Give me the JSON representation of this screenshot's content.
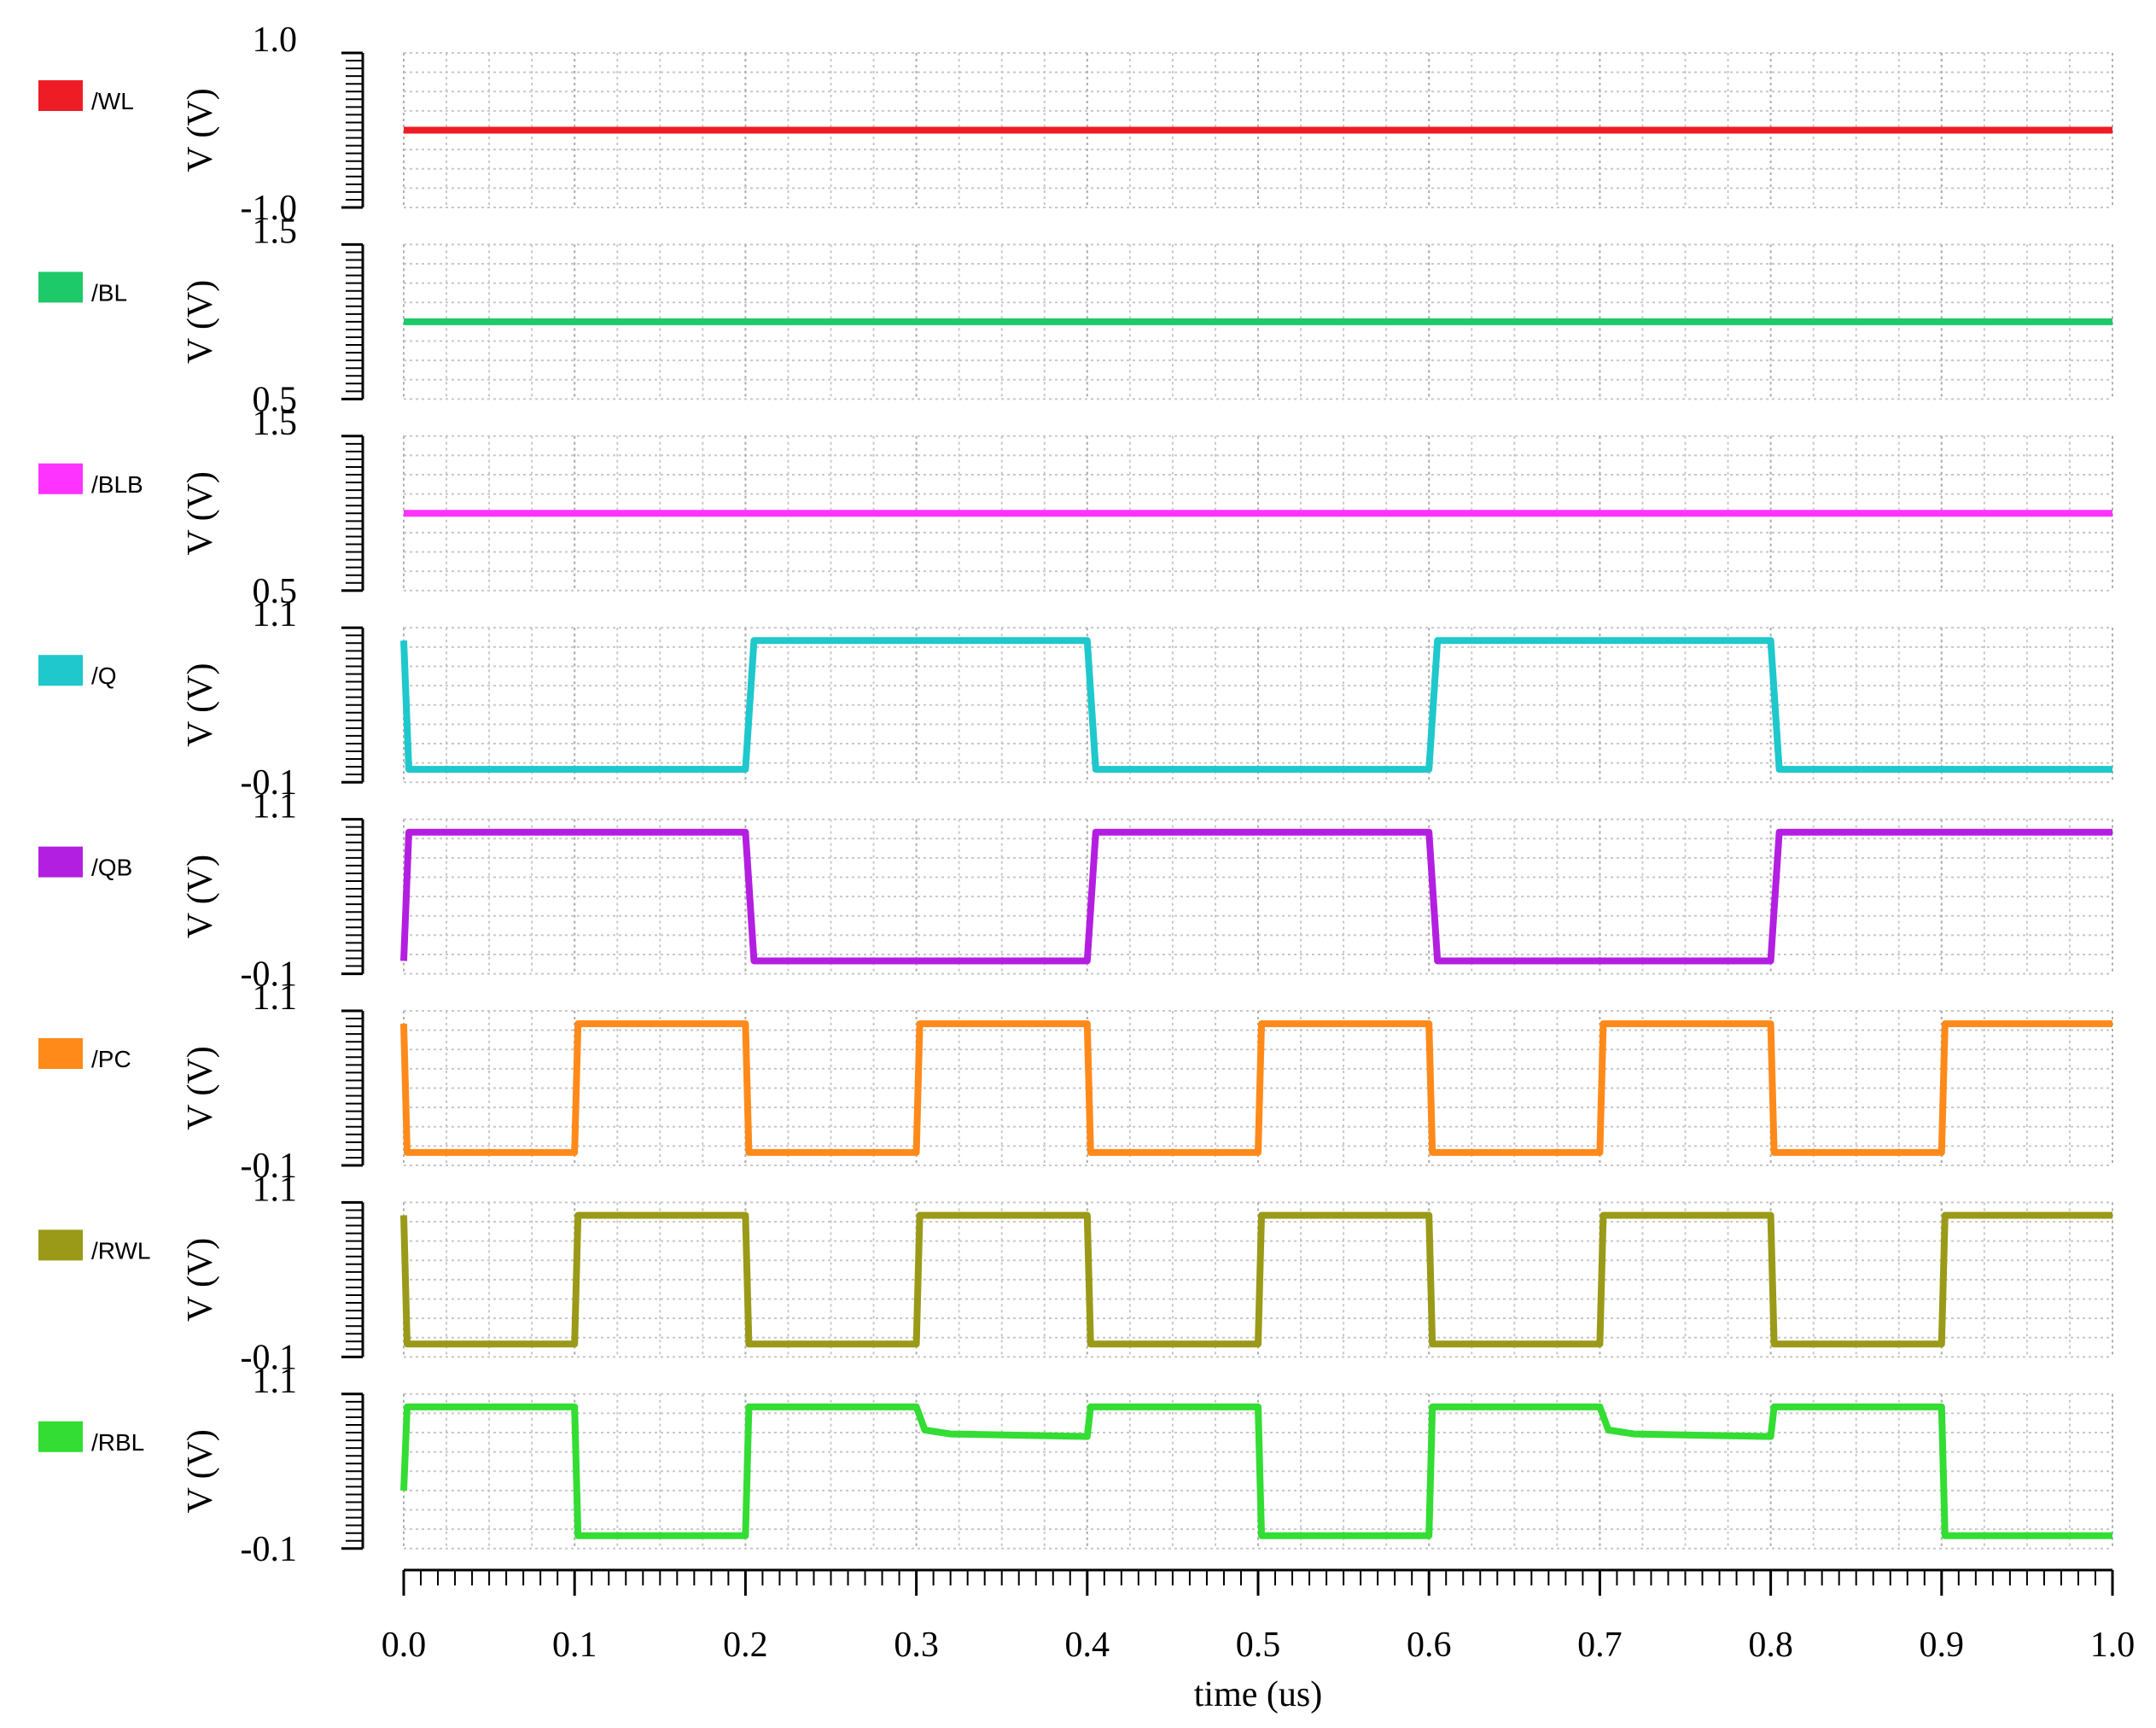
{
  "chart_data": [
    {
      "type": "line",
      "ylabel": "V (V)",
      "xlim": [
        0,
        1
      ],
      "ylim": [
        -1,
        1
      ],
      "yticks": [
        {
          "value": -1,
          "label": "-1.0"
        },
        {
          "value": 1,
          "label": "1.0"
        }
      ],
      "grid": true,
      "x": [
        0,
        1
      ],
      "series": [
        {
          "name": "/WL",
          "color": "#ee1c25",
          "values": [
            0,
            0
          ]
        }
      ]
    },
    {
      "type": "line",
      "ylabel": "V (V)",
      "xlim": [
        0,
        1
      ],
      "ylim": [
        0.5,
        1.5
      ],
      "yticks": [
        0.5,
        1.5
      ],
      "grid": true,
      "x": [
        0,
        1
      ],
      "series": [
        {
          "name": "/BL",
          "color": "#1ec96a",
          "values": [
            1,
            1
          ]
        }
      ]
    },
    {
      "type": "line",
      "ylabel": "V (V)",
      "xlim": [
        0,
        1
      ],
      "ylim": [
        0.5,
        1.5
      ],
      "yticks": [
        0.5,
        1.5
      ],
      "grid": true,
      "x": [
        0,
        1
      ],
      "series": [
        {
          "name": "/BLB",
          "color": "#ff33ff",
          "values": [
            1,
            1
          ]
        }
      ]
    },
    {
      "type": "line",
      "ylabel": "V (V)",
      "xlim": [
        0,
        1
      ],
      "ylim": [
        -0.1,
        1.1
      ],
      "yticks": [
        -0.1,
        1.1
      ],
      "grid": true,
      "x": [
        0,
        0.003,
        0.2,
        0.205,
        0.4,
        0.405,
        0.6,
        0.605,
        0.8,
        0.805,
        1
      ],
      "series": [
        {
          "name": "/Q",
          "color": "#1ec8cc",
          "values": [
            1,
            0,
            0,
            1,
            1,
            0,
            0,
            1,
            1,
            0,
            0
          ]
        }
      ]
    },
    {
      "type": "line",
      "ylabel": "V (V)",
      "xlim": [
        0,
        1
      ],
      "ylim": [
        -0.1,
        1.1
      ],
      "yticks": [
        -0.1,
        1.1
      ],
      "grid": true,
      "x": [
        0,
        0.003,
        0.2,
        0.205,
        0.4,
        0.405,
        0.6,
        0.605,
        0.8,
        0.805,
        1
      ],
      "series": [
        {
          "name": "/QB",
          "color": "#b31fe0",
          "values": [
            0,
            1,
            1,
            0,
            0,
            1,
            1,
            0,
            0,
            1,
            1
          ]
        }
      ]
    },
    {
      "type": "line",
      "ylabel": "V (V)",
      "xlim": [
        0,
        1
      ],
      "ylim": [
        -0.1,
        1.1
      ],
      "yticks": [
        -0.1,
        1.1
      ],
      "grid": true,
      "x": [
        0,
        0.002,
        0.1,
        0.102,
        0.2,
        0.202,
        0.3,
        0.302,
        0.4,
        0.402,
        0.5,
        0.502,
        0.6,
        0.602,
        0.7,
        0.702,
        0.8,
        0.802,
        0.9,
        0.902,
        1
      ],
      "series": [
        {
          "name": "/PC",
          "color": "#ff8a1a",
          "values": [
            1,
            0,
            0,
            1,
            1,
            0,
            0,
            1,
            1,
            0,
            0,
            1,
            1,
            0,
            0,
            1,
            1,
            0,
            0,
            1,
            1
          ]
        }
      ]
    },
    {
      "type": "line",
      "ylabel": "V (V)",
      "xlim": [
        0,
        1
      ],
      "ylim": [
        -0.1,
        1.1
      ],
      "yticks": [
        -0.1,
        1.1
      ],
      "grid": true,
      "x": [
        0,
        0.002,
        0.1,
        0.102,
        0.2,
        0.202,
        0.3,
        0.302,
        0.4,
        0.402,
        0.5,
        0.502,
        0.6,
        0.602,
        0.7,
        0.702,
        0.8,
        0.802,
        0.9,
        0.902,
        1
      ],
      "series": [
        {
          "name": "/RWL",
          "color": "#9a9a18",
          "values": [
            1,
            0,
            0,
            1,
            1,
            0,
            0,
            1,
            1,
            0,
            0,
            1,
            1,
            0,
            0,
            1,
            1,
            0,
            0,
            1,
            1
          ]
        }
      ]
    },
    {
      "type": "line",
      "ylabel": "V (V)",
      "xlim": [
        0,
        1
      ],
      "ylim": [
        -0.1,
        1.1
      ],
      "yticks": [
        -0.1,
        1.1
      ],
      "grid": true,
      "x": [
        0,
        0.002,
        0.1,
        0.102,
        0.2,
        0.202,
        0.3,
        0.305,
        0.32,
        0.4,
        0.402,
        0.5,
        0.502,
        0.6,
        0.602,
        0.7,
        0.705,
        0.72,
        0.8,
        0.802,
        0.9,
        0.902,
        1
      ],
      "series": [
        {
          "name": "/RBL",
          "color": "#33dd33",
          "values": [
            0.35,
            1,
            1,
            0,
            0,
            1,
            1,
            0.82,
            0.79,
            0.77,
            1,
            1,
            0,
            0,
            1,
            1,
            0.82,
            0.79,
            0.77,
            1,
            1,
            0,
            0
          ]
        }
      ],
      "xlabel": "time (us)",
      "xticks": [
        {
          "value": 0,
          "label": "0.0"
        },
        0.1,
        0.2,
        0.3,
        0.4,
        0.5,
        0.6,
        0.7,
        0.8,
        0.9,
        {
          "value": 1,
          "label": "1.0"
        }
      ]
    }
  ]
}
